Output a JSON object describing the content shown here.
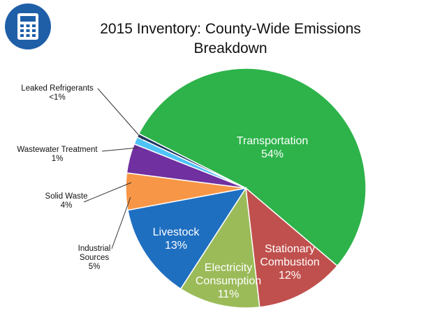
{
  "chart_data": {
    "type": "pie",
    "title": "2015 Inventory: County-Wide Emissions Breakdown",
    "categories": [
      "Transportation",
      "Stationary Combustion",
      "Electricity Consumption",
      "Livestock",
      "Industrial Sources",
      "Solid Waste",
      "Wastewater Treatment",
      "Leaked Refrigerants"
    ],
    "values": [
      54,
      12,
      11,
      13,
      5,
      4,
      1,
      0.5
    ],
    "value_labels": [
      "54%",
      "12%",
      "11%",
      "13%",
      "5%",
      "4%",
      "1%",
      "<1%"
    ],
    "colors": [
      "#2db34a",
      "#c0504d",
      "#9bbb59",
      "#1f6fc1",
      "#f79646",
      "#7030a0",
      "#4fc3f7",
      "#1f3864"
    ]
  }
}
